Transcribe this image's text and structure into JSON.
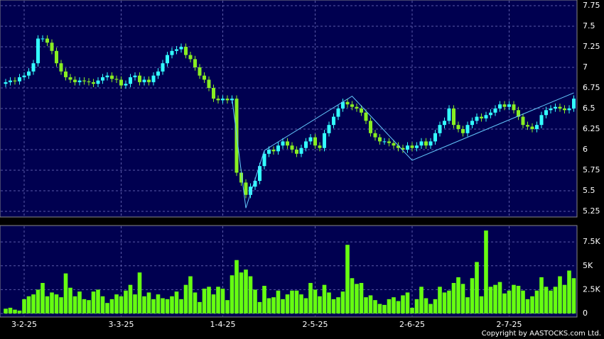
{
  "chart_data": [
    {
      "type": "candlestick",
      "categories": [
        null,
        null,
        null,
        null,
        "3-2-25",
        null,
        null,
        null,
        null,
        null,
        null,
        null,
        null,
        null,
        null,
        null,
        null,
        null,
        null,
        null,
        null,
        null,
        null,
        null,
        null,
        "3-3-25",
        null,
        null,
        null,
        null,
        null,
        null,
        null,
        null,
        null,
        null,
        null,
        null,
        null,
        null,
        null,
        null,
        null,
        null,
        null,
        null,
        null,
        "1-4-25",
        null,
        null,
        null,
        null,
        null,
        null,
        null,
        null,
        null,
        null,
        null,
        null,
        null,
        null,
        null,
        null,
        null,
        null,
        null,
        "2-5-25",
        null,
        null,
        null,
        null,
        null,
        null,
        null,
        null,
        null,
        null,
        null,
        null,
        null,
        null,
        null,
        null,
        null,
        null,
        null,
        null,
        "2-6-25",
        null,
        null,
        null,
        null,
        null,
        null,
        null,
        null,
        null,
        null,
        null,
        null,
        null,
        null,
        null,
        null,
        null,
        null,
        null,
        null,
        "2-7-25",
        null,
        null,
        null,
        null,
        null,
        null,
        null,
        null,
        null,
        null,
        null,
        null,
        null,
        null
      ],
      "open": [
        6.8,
        6.82,
        6.84,
        6.83,
        6.88,
        6.9,
        6.95,
        7.05,
        7.35,
        7.35,
        7.3,
        7.2,
        7.05,
        6.95,
        6.88,
        6.85,
        6.82,
        6.84,
        6.83,
        6.82,
        6.8,
        6.84,
        6.88,
        6.9,
        6.86,
        6.85,
        6.78,
        6.8,
        6.88,
        6.9,
        6.82,
        6.85,
        6.82,
        6.9,
        6.95,
        7.05,
        7.15,
        7.2,
        7.22,
        7.25,
        7.15,
        7.1,
        7.0,
        6.9,
        6.85,
        6.75,
        6.62,
        6.6,
        6.62,
        6.6,
        6.62,
        5.72,
        5.6,
        5.45,
        5.55,
        5.62,
        5.8,
        5.95,
        6.0,
        5.98,
        6.05,
        6.1,
        6.05,
        6.0,
        5.95,
        6.02,
        6.1,
        6.15,
        6.05,
        6.02,
        6.2,
        6.3,
        6.4,
        6.5,
        6.58,
        6.55,
        6.52,
        6.5,
        6.45,
        6.35,
        6.2,
        6.15,
        6.1,
        6.1,
        6.08,
        6.05,
        6.02,
        6.0,
        6.05,
        6.02,
        6.05,
        6.1,
        6.05,
        6.1,
        6.2,
        6.3,
        6.35,
        6.5,
        6.3,
        6.25,
        6.2,
        6.3,
        6.35,
        6.4,
        6.38,
        6.42,
        6.45,
        6.5,
        6.55,
        6.52,
        6.55,
        6.48,
        6.4,
        6.3,
        6.28,
        6.25,
        6.3,
        6.42,
        6.48,
        6.5,
        6.52,
        6.5,
        6.48,
        6.5
      ],
      "high": [
        6.86,
        6.88,
        6.88,
        6.92,
        6.94,
        6.99,
        7.09,
        7.39,
        7.39,
        7.39,
        7.34,
        7.24,
        7.09,
        6.99,
        6.92,
        6.89,
        6.88,
        6.88,
        6.87,
        6.86,
        6.88,
        6.92,
        6.94,
        6.94,
        6.9,
        6.89,
        6.84,
        6.92,
        6.94,
        6.94,
        6.89,
        6.89,
        6.94,
        6.99,
        7.09,
        7.19,
        7.24,
        7.26,
        7.29,
        7.29,
        7.19,
        7.14,
        7.04,
        6.94,
        6.89,
        6.79,
        6.66,
        6.66,
        6.66,
        6.66,
        6.66,
        5.76,
        5.64,
        5.59,
        5.66,
        5.84,
        5.99,
        6.04,
        6.04,
        6.09,
        6.14,
        6.14,
        6.09,
        6.04,
        6.06,
        6.14,
        6.19,
        6.19,
        6.09,
        6.24,
        6.34,
        6.44,
        6.54,
        6.62,
        6.62,
        6.59,
        6.56,
        6.54,
        6.49,
        6.39,
        6.24,
        6.19,
        6.14,
        6.14,
        6.12,
        6.09,
        6.06,
        6.09,
        6.09,
        6.09,
        6.14,
        6.14,
        6.14,
        6.24,
        6.34,
        6.39,
        6.54,
        6.54,
        6.34,
        6.29,
        6.34,
        6.39,
        6.44,
        6.44,
        6.46,
        6.49,
        6.54,
        6.59,
        6.59,
        6.59,
        6.59,
        6.52,
        6.44,
        6.34,
        6.32,
        6.34,
        6.46,
        6.52,
        6.54,
        6.56,
        6.56,
        6.54,
        6.54,
        6.66
      ],
      "low": [
        6.76,
        6.78,
        6.79,
        6.79,
        6.84,
        6.86,
        6.91,
        7.01,
        7.31,
        7.26,
        7.16,
        7.01,
        6.91,
        6.84,
        6.81,
        6.78,
        6.78,
        6.79,
        6.78,
        6.76,
        6.76,
        6.8,
        6.84,
        6.82,
        6.81,
        6.74,
        6.74,
        6.76,
        6.84,
        6.78,
        6.78,
        6.78,
        6.78,
        6.86,
        6.91,
        7.01,
        7.11,
        7.16,
        7.18,
        7.11,
        7.06,
        6.96,
        6.86,
        6.81,
        6.71,
        6.58,
        6.56,
        6.56,
        6.56,
        6.56,
        5.68,
        5.56,
        5.41,
        5.41,
        5.51,
        5.58,
        5.76,
        5.91,
        5.94,
        5.94,
        6.01,
        6.01,
        5.96,
        5.91,
        5.91,
        5.98,
        6.06,
        6.01,
        5.98,
        5.98,
        6.16,
        6.26,
        6.36,
        6.46,
        6.51,
        6.48,
        6.46,
        6.41,
        6.31,
        6.16,
        6.11,
        6.06,
        6.06,
        6.04,
        6.01,
        5.98,
        5.96,
        5.96,
        5.98,
        5.98,
        6.01,
        6.01,
        6.01,
        6.06,
        6.16,
        6.26,
        6.31,
        6.26,
        6.21,
        6.16,
        6.16,
        6.26,
        6.31,
        6.34,
        6.34,
        6.38,
        6.41,
        6.46,
        6.48,
        6.48,
        6.44,
        6.36,
        6.26,
        6.24,
        6.21,
        6.21,
        6.26,
        6.38,
        6.44,
        6.46,
        6.46,
        6.44,
        6.44,
        6.46
      ],
      "close": [
        6.82,
        6.84,
        6.83,
        6.88,
        6.9,
        6.95,
        7.05,
        7.35,
        7.35,
        7.3,
        7.2,
        7.05,
        6.95,
        6.88,
        6.85,
        6.82,
        6.84,
        6.83,
        6.82,
        6.8,
        6.84,
        6.88,
        6.9,
        6.86,
        6.85,
        6.78,
        6.8,
        6.88,
        6.9,
        6.82,
        6.85,
        6.82,
        6.9,
        6.95,
        7.05,
        7.15,
        7.2,
        7.22,
        7.25,
        7.15,
        7.1,
        7.0,
        6.9,
        6.85,
        6.75,
        6.62,
        6.6,
        6.62,
        6.6,
        6.62,
        5.72,
        5.6,
        5.45,
        5.55,
        5.62,
        5.8,
        5.95,
        6.0,
        5.98,
        6.05,
        6.1,
        6.05,
        6.0,
        5.95,
        6.02,
        6.1,
        6.15,
        6.05,
        6.02,
        6.2,
        6.3,
        6.4,
        6.5,
        6.58,
        6.55,
        6.52,
        6.5,
        6.45,
        6.35,
        6.2,
        6.15,
        6.1,
        6.1,
        6.08,
        6.05,
        6.02,
        6.0,
        6.05,
        6.02,
        6.05,
        6.1,
        6.05,
        6.1,
        6.2,
        6.3,
        6.35,
        6.5,
        6.3,
        6.25,
        6.2,
        6.3,
        6.35,
        6.4,
        6.38,
        6.42,
        6.45,
        6.5,
        6.55,
        6.52,
        6.55,
        6.48,
        6.4,
        6.3,
        6.28,
        6.25,
        6.3,
        6.42,
        6.48,
        6.5,
        6.52,
        6.5,
        6.48,
        6.5,
        6.62
      ],
      "up_color": "#33ffff",
      "down_color": "#88ee22",
      "overlay": {
        "color": "#66ccff",
        "x": [
          49,
          52,
          56,
          75,
          88,
          123
        ],
        "values": [
          6.62,
          5.29,
          5.99,
          6.65,
          5.87,
          6.69
        ]
      },
      "ylim": [
        5.25,
        7.75
      ],
      "yticks": [
        5.25,
        5.5,
        5.75,
        6,
        6.25,
        6.5,
        6.75,
        7,
        7.25,
        7.5,
        7.75
      ],
      "grid": true
    },
    {
      "type": "bar",
      "color": "#66ff11",
      "values": [
        500,
        600,
        400,
        300,
        1500,
        1800,
        2000,
        2500,
        3200,
        1800,
        2200,
        2000,
        1700,
        4200,
        2700,
        1800,
        2300,
        1500,
        1400,
        2300,
        2500,
        1800,
        1100,
        1500,
        2000,
        1800,
        2400,
        3000,
        2000,
        4300,
        1800,
        2200,
        1500,
        2000,
        1600,
        1500,
        1800,
        2300,
        1500,
        3000,
        3900,
        2200,
        1200,
        2600,
        2800,
        2000,
        2800,
        2600,
        1400,
        4000,
        5600,
        4300,
        4600,
        3900,
        2500,
        1200,
        2900,
        1600,
        1700,
        2400,
        1500,
        2000,
        2400,
        2400,
        2000,
        1600,
        3200,
        2500,
        1800,
        3000,
        2200,
        1500,
        1700,
        2300,
        7200,
        3700,
        3100,
        3200,
        1700,
        1900,
        1400,
        1000,
        900,
        1500,
        1700,
        1300,
        1900,
        2200,
        600,
        1500,
        2800,
        1600,
        1000,
        1500,
        2800,
        2200,
        2400,
        3200,
        3800,
        3100,
        1700,
        3700,
        5400,
        1800,
        8700,
        2800,
        3000,
        3300,
        2100,
        2400,
        3000,
        2900,
        2400,
        1500,
        1800,
        2400,
        3800,
        2800,
        2400,
        2800,
        3900,
        3000,
        4500,
        3700
      ],
      "ylim": [
        0,
        9000
      ],
      "yticks": [
        0,
        {
          "value": 2500,
          "label": "2.5K"
        },
        {
          "value": 5000,
          "label": "5K"
        },
        {
          "value": 7500,
          "label": "7.5K"
        }
      ],
      "grid": true
    }
  ],
  "footer": "Copyright by AASTOCKS.com Ltd."
}
